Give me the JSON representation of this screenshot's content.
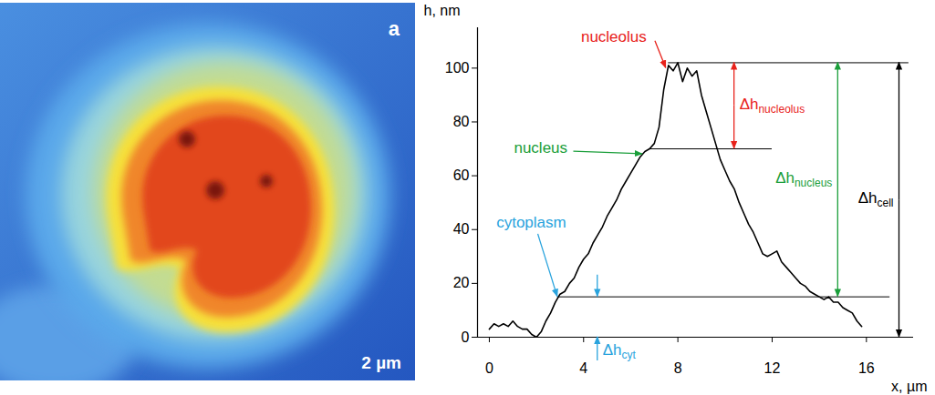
{
  "image": {
    "label": "a",
    "scale_bar": "2 µm"
  },
  "chart_data": {
    "type": "line",
    "x_label": "x, µm",
    "y_label": "h, nm",
    "xlim": [
      -0.5,
      18
    ],
    "ylim": [
      0,
      115
    ],
    "xticks": [
      0,
      4,
      8,
      12,
      16
    ],
    "yticks": [
      0,
      20,
      40,
      60,
      80,
      100
    ],
    "grid": false,
    "color": "#000000",
    "x": [
      0,
      0.2,
      0.4,
      0.6,
      0.8,
      1.0,
      1.2,
      1.4,
      1.6,
      1.8,
      2.0,
      2.2,
      2.4,
      2.6,
      2.8,
      3.0,
      3.2,
      3.4,
      3.6,
      3.8,
      4.0,
      4.2,
      4.4,
      4.6,
      4.8,
      5.0,
      5.2,
      5.4,
      5.6,
      5.8,
      6.0,
      6.2,
      6.4,
      6.6,
      6.8,
      7.0,
      7.2,
      7.4,
      7.6,
      7.8,
      8.0,
      8.2,
      8.4,
      8.6,
      8.8,
      9.0,
      9.2,
      9.4,
      9.6,
      9.8,
      10.0,
      10.2,
      10.4,
      10.6,
      10.8,
      11.0,
      11.2,
      11.4,
      11.6,
      11.8,
      12.0,
      12.2,
      12.4,
      12.6,
      12.8,
      13.0,
      13.2,
      13.4,
      13.6,
      13.8,
      14.0,
      14.2,
      14.4,
      14.6,
      14.8,
      15.0,
      15.2,
      15.4,
      15.6,
      15.8
    ],
    "values": [
      3,
      5,
      4,
      5,
      4,
      6,
      4,
      3,
      3,
      1,
      0,
      2,
      6,
      9,
      13,
      16,
      17,
      20,
      22,
      26,
      29,
      31,
      35,
      38,
      41,
      45,
      48,
      51,
      55,
      58,
      61,
      64,
      67,
      69,
      70,
      72,
      78,
      92,
      101,
      99,
      102,
      95,
      100,
      97,
      99,
      90,
      84,
      78,
      72,
      66,
      62,
      58,
      55,
      50,
      46,
      42,
      39,
      35,
      31,
      30,
      31,
      32,
      28,
      26,
      24,
      22,
      20,
      19,
      17,
      16,
      15,
      14,
      15,
      13,
      13,
      11,
      10,
      9,
      6,
      4
    ],
    "annotations": [
      {
        "text": "nucleolus",
        "color": "#e8221b",
        "x": 5.3,
        "y": 111,
        "arrow_to": [
          7.5,
          100
        ]
      },
      {
        "text": "nucleus",
        "color": "#1a9e3a",
        "x": 2.2,
        "y": 70,
        "arrow_to": [
          6.5,
          68
        ]
      },
      {
        "text": "cytoplasm",
        "color": "#29a3dd",
        "x": 1.8,
        "y": 42,
        "arrow_to": [
          2.9,
          15
        ]
      }
    ],
    "reference_lines": [
      {
        "y": 102,
        "x": [
          7.6,
          17.8
        ]
      },
      {
        "y": 70,
        "x": [
          6.8,
          12
        ]
      },
      {
        "y": 15,
        "x": [
          2.9,
          17
        ]
      }
    ],
    "dimensions": [
      {
        "label": "Δhnucleolus",
        "color": "#e8221b",
        "x": 10.4,
        "from": 70,
        "to": 102
      },
      {
        "label": "Δhnucleus",
        "color": "#1a9e3a",
        "x": 14.8,
        "from": 15,
        "to": 102
      },
      {
        "label": "Δhcell",
        "color": "#000000",
        "x": 17.4,
        "from": 0,
        "to": 102
      },
      {
        "label": "Δhcyt",
        "color": "#29a3dd",
        "x": 4.6,
        "from": 0,
        "to": 15
      }
    ]
  }
}
